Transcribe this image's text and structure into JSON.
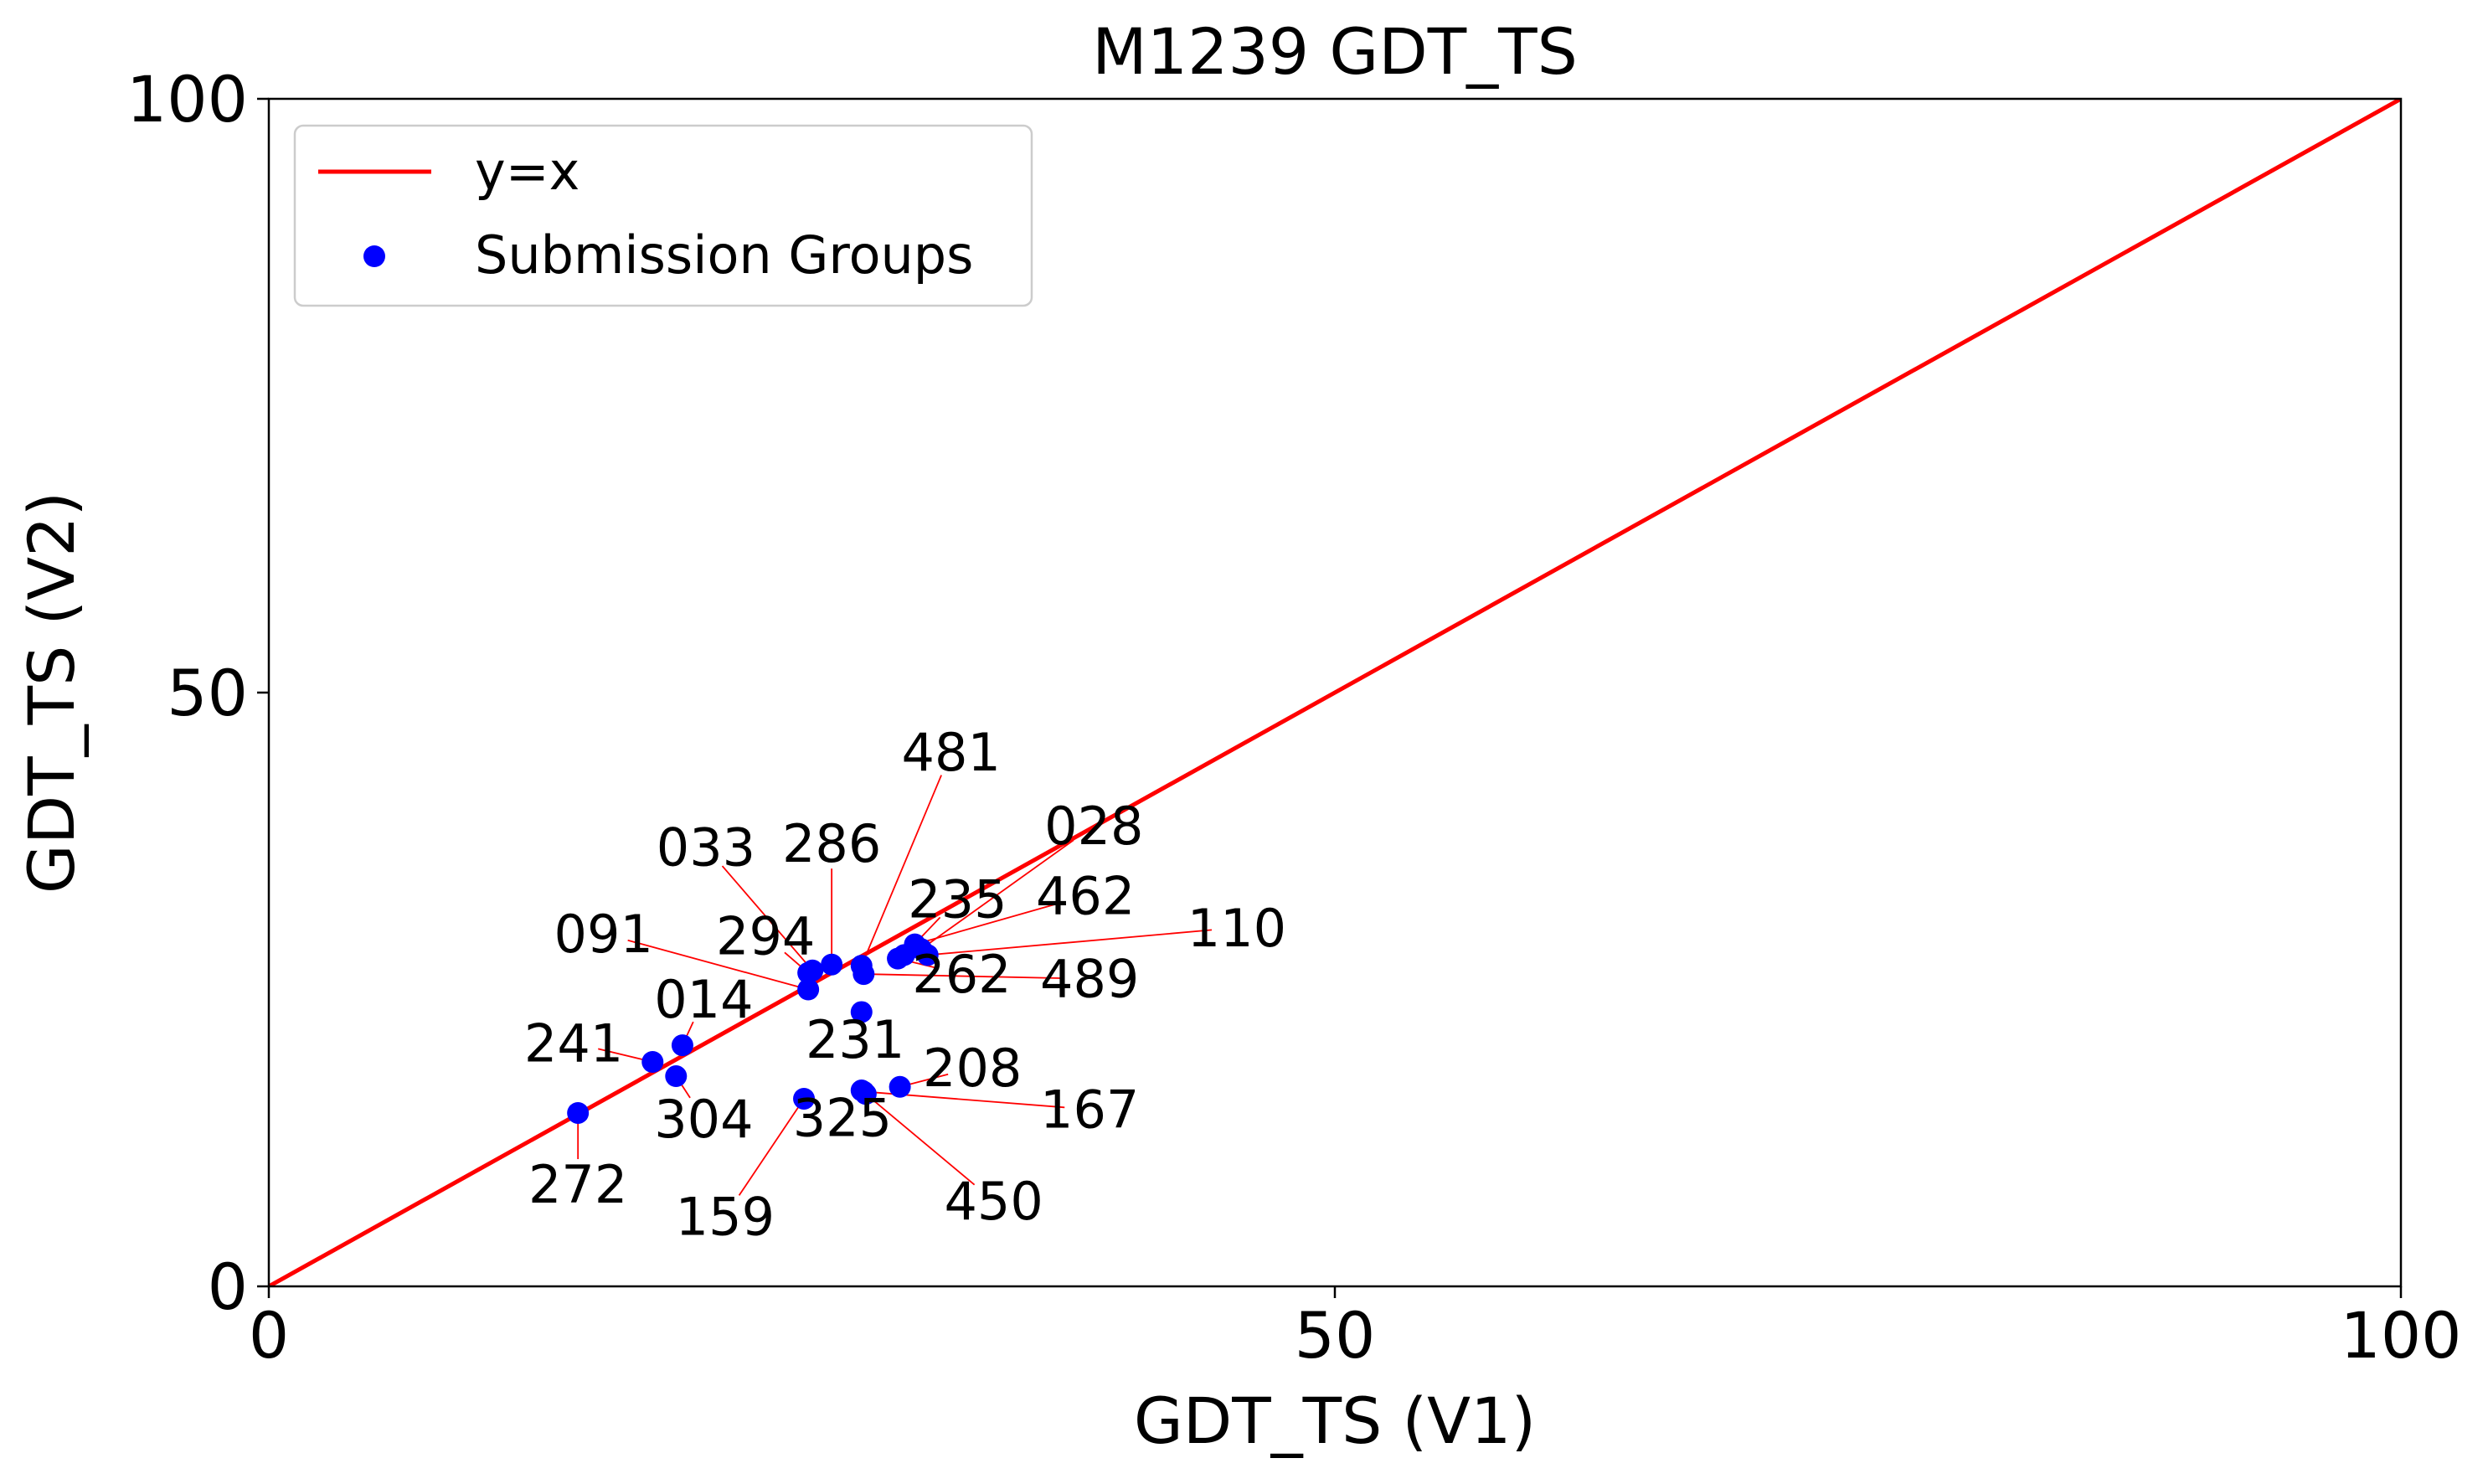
{
  "chart_data": {
    "type": "scatter",
    "title": "M1239 GDT_TS",
    "xlabel": "GDT_TS (V1)",
    "ylabel": "GDT_TS (V2)",
    "xlim": [
      0,
      100
    ],
    "ylim": [
      0,
      100
    ],
    "xticks": [
      "0",
      "50",
      "100"
    ],
    "yticks": [
      "0",
      "50",
      "100"
    ],
    "grid": false,
    "legend_position": "top-left",
    "colors": {
      "reference_line": "#ff0000",
      "points": "#0000ff",
      "arrows": "#ff0000"
    },
    "series": [
      {
        "name": "y=x",
        "kind": "line",
        "x": [
          0,
          100
        ],
        "y": [
          0,
          100
        ]
      },
      {
        "name": "Submission Groups",
        "kind": "scatter",
        "points": [
          {
            "label": "481",
            "x": 27.8,
            "y": 27.0,
            "label_x": 32.0,
            "label_y": 45.0
          },
          {
            "label": "033",
            "x": 25.5,
            "y": 26.6,
            "label_x": 20.5,
            "label_y": 37.0
          },
          {
            "label": "286",
            "x": 26.4,
            "y": 27.1,
            "label_x": 26.4,
            "label_y": 37.3
          },
          {
            "label": "028",
            "x": 30.6,
            "y": 28.4,
            "label_x": 38.7,
            "label_y": 38.8
          },
          {
            "label": "235",
            "x": 29.8,
            "y": 27.9,
            "label_x": 32.3,
            "label_y": 32.6
          },
          {
            "label": "462",
            "x": 30.3,
            "y": 28.8,
            "label_x": 38.3,
            "label_y": 32.9
          },
          {
            "label": "110",
            "x": 30.9,
            "y": 27.9,
            "label_x": 45.4,
            "label_y": 30.2
          },
          {
            "label": "294",
            "x": 25.3,
            "y": 26.4,
            "label_x": 23.3,
            "label_y": 29.5
          },
          {
            "label": "091",
            "x": 25.3,
            "y": 25.0,
            "label_x": 15.7,
            "label_y": 29.7
          },
          {
            "label": "262",
            "x": 29.5,
            "y": 27.6,
            "label_x": 32.5,
            "label_y": 26.3
          },
          {
            "label": "489",
            "x": 27.9,
            "y": 26.3,
            "label_x": 38.5,
            "label_y": 25.9
          },
          {
            "label": "014",
            "x": 19.4,
            "y": 20.3,
            "label_x": 20.4,
            "label_y": 24.2
          },
          {
            "label": "231",
            "x": 27.8,
            "y": 23.1,
            "label_x": 27.5,
            "label_y": 20.8
          },
          {
            "label": "241",
            "x": 18.0,
            "y": 18.9,
            "label_x": 14.3,
            "label_y": 20.5
          },
          {
            "label": "208",
            "x": 29.6,
            "y": 16.8,
            "label_x": 33.0,
            "label_y": 18.4
          },
          {
            "label": "304",
            "x": 19.1,
            "y": 17.7,
            "label_x": 20.4,
            "label_y": 14.1
          },
          {
            "label": "325",
            "x": 27.8,
            "y": 16.5,
            "label_x": 26.9,
            "label_y": 14.2
          },
          {
            "label": "167",
            "x": 27.9,
            "y": 16.4,
            "label_x": 38.5,
            "label_y": 14.9
          },
          {
            "label": "272",
            "x": 14.5,
            "y": 14.6,
            "label_x": 14.5,
            "label_y": 8.6
          },
          {
            "label": "159",
            "x": 25.1,
            "y": 15.8,
            "label_x": 21.4,
            "label_y": 5.9
          },
          {
            "label": "450",
            "x": 28.0,
            "y": 16.2,
            "label_x": 34.0,
            "label_y": 7.2
          }
        ]
      }
    ]
  }
}
